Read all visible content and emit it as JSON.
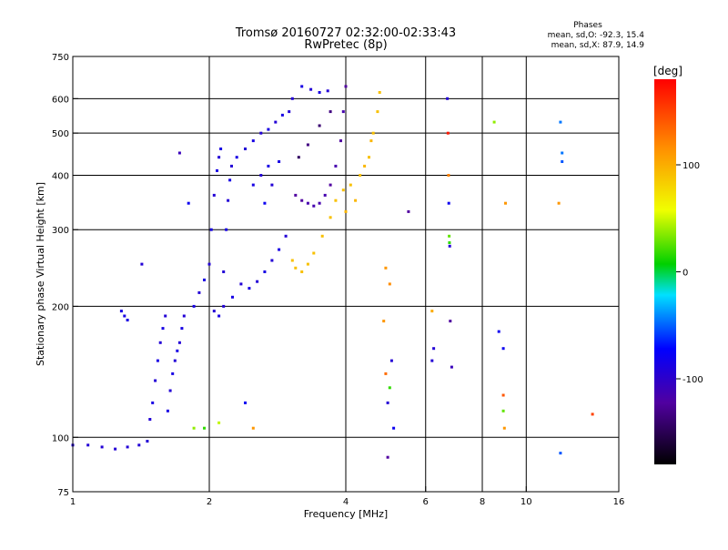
{
  "header": {
    "title": "Tromsø 20160727 02:32:00-02:33:43",
    "subtitle": "RwPretec (8p)",
    "phase_title": "Phases",
    "phase_o": "mean, sd,O: -92.3, 15.4",
    "phase_x": "mean, sd,X:  87.9, 14.9"
  },
  "chart_data": {
    "type": "scatter",
    "xlabel": "Frequency [MHz]",
    "ylabel": "Stationary phase Virtual Height [km]",
    "x_scale": "log2",
    "y_scale": "log",
    "xlim": [
      1,
      16
    ],
    "ylim": [
      75,
      750
    ],
    "x_ticks": [
      {
        "v": 1,
        "label": "1"
      },
      {
        "v": 2,
        "label": "2"
      },
      {
        "v": 4,
        "label": "4"
      },
      {
        "v": 6,
        "label": "6"
      },
      {
        "v": 8,
        "label": "8"
      },
      {
        "v": 10,
        "label": "10"
      },
      {
        "v": 16,
        "label": "16"
      }
    ],
    "x_gridlines": [
      2,
      4,
      6,
      8,
      10
    ],
    "y_ticks": [
      {
        "v": 75,
        "label": "75"
      },
      {
        "v": 100,
        "label": "100"
      },
      {
        "v": 200,
        "label": "200"
      },
      {
        "v": 300,
        "label": "300"
      },
      {
        "v": 400,
        "label": "400"
      },
      {
        "v": 500,
        "label": "500"
      },
      {
        "v": 600,
        "label": "600"
      },
      {
        "v": 750,
        "label": "750"
      }
    ],
    "y_gridlines": [
      100,
      200,
      300,
      400,
      500,
      600
    ],
    "colorbar": {
      "label": "[deg]",
      "range": [
        -180,
        180
      ],
      "ticks": [
        {
          "v": 100,
          "label": "100"
        },
        {
          "v": 0,
          "label": "0"
        },
        {
          "v": -100,
          "label": "-100"
        }
      ]
    },
    "series": [
      {
        "values": [
          [
            1.0,
            96,
            -110
          ],
          [
            1.08,
            96,
            -110
          ],
          [
            1.16,
            95,
            -110
          ],
          [
            1.24,
            94,
            -110
          ],
          [
            1.32,
            95,
            -110
          ],
          [
            1.4,
            96,
            -110
          ],
          [
            1.46,
            98,
            -110
          ],
          [
            1.28,
            195,
            -105
          ],
          [
            1.3,
            190,
            -105
          ],
          [
            1.32,
            186,
            -105
          ],
          [
            1.48,
            110,
            -110
          ],
          [
            1.5,
            120,
            -105
          ],
          [
            1.52,
            135,
            -110
          ],
          [
            1.54,
            150,
            -105
          ],
          [
            1.56,
            165,
            -110
          ],
          [
            1.58,
            178,
            -105
          ],
          [
            1.6,
            190,
            -110
          ],
          [
            1.62,
            115,
            -105
          ],
          [
            1.64,
            128,
            -110
          ],
          [
            1.66,
            140,
            -105
          ],
          [
            1.68,
            150,
            -110
          ],
          [
            1.7,
            158,
            -105
          ],
          [
            1.72,
            165,
            -110
          ],
          [
            1.74,
            178,
            -105
          ],
          [
            1.76,
            190,
            -110
          ],
          [
            1.85,
            200,
            -105
          ],
          [
            1.9,
            215,
            -110
          ],
          [
            1.95,
            230,
            -105
          ],
          [
            2.0,
            250,
            -110
          ],
          [
            2.02,
            300,
            -105
          ],
          [
            2.05,
            360,
            -110
          ],
          [
            2.08,
            410,
            -105
          ],
          [
            2.1,
            440,
            -110
          ],
          [
            2.12,
            460,
            -105
          ],
          [
            2.15,
            240,
            -110
          ],
          [
            2.18,
            300,
            -105
          ],
          [
            2.2,
            350,
            -110
          ],
          [
            2.22,
            390,
            -105
          ],
          [
            2.24,
            420,
            -110
          ],
          [
            2.05,
            195,
            -110
          ],
          [
            2.1,
            190,
            -105
          ],
          [
            2.15,
            200,
            -110
          ],
          [
            2.25,
            210,
            -105
          ],
          [
            2.35,
            225,
            -110
          ],
          [
            2.45,
            220,
            -105
          ],
          [
            2.55,
            228,
            -110
          ],
          [
            2.65,
            240,
            -105
          ],
          [
            2.75,
            255,
            -110
          ],
          [
            2.85,
            270,
            -105
          ],
          [
            2.95,
            290,
            -110
          ],
          [
            2.3,
            440,
            -105
          ],
          [
            2.4,
            460,
            -110
          ],
          [
            2.5,
            480,
            -105
          ],
          [
            2.6,
            500,
            -110
          ],
          [
            2.7,
            510,
            -105
          ],
          [
            2.8,
            530,
            -110
          ],
          [
            2.9,
            550,
            -105
          ],
          [
            3.0,
            560,
            -110
          ],
          [
            2.5,
            380,
            -105
          ],
          [
            2.6,
            400,
            -110
          ],
          [
            2.7,
            420,
            -105
          ],
          [
            2.75,
            380,
            -110
          ],
          [
            2.85,
            430,
            -105
          ],
          [
            3.05,
            600,
            -110
          ],
          [
            3.2,
            640,
            -105
          ],
          [
            3.35,
            630,
            -110
          ],
          [
            3.5,
            620,
            -105
          ],
          [
            3.65,
            625,
            -110
          ],
          [
            3.1,
            360,
            -130
          ],
          [
            3.2,
            350,
            -130
          ],
          [
            3.3,
            345,
            -125
          ],
          [
            3.4,
            340,
            -125
          ],
          [
            3.5,
            345,
            -125
          ],
          [
            3.6,
            360,
            -125
          ],
          [
            3.7,
            380,
            -130
          ],
          [
            3.8,
            420,
            -125
          ],
          [
            3.9,
            480,
            -130
          ],
          [
            3.95,
            560,
            -125
          ],
          [
            4.0,
            640,
            -130
          ],
          [
            3.15,
            440,
            -150
          ],
          [
            3.3,
            470,
            -140
          ],
          [
            3.5,
            520,
            -145
          ],
          [
            3.7,
            560,
            -140
          ],
          [
            3.05,
            255,
            90
          ],
          [
            3.1,
            245,
            90
          ],
          [
            3.2,
            240,
            90
          ],
          [
            3.3,
            250,
            90
          ],
          [
            3.4,
            265,
            90
          ],
          [
            3.55,
            290,
            90
          ],
          [
            3.7,
            320,
            90
          ],
          [
            3.8,
            350,
            90
          ],
          [
            3.95,
            370,
            90
          ],
          [
            4.1,
            380,
            90
          ],
          [
            4.3,
            400,
            90
          ],
          [
            4.5,
            440,
            90
          ],
          [
            4.6,
            500,
            90
          ],
          [
            4.7,
            560,
            90
          ],
          [
            4.75,
            620,
            90
          ],
          [
            4.0,
            330,
            95
          ],
          [
            4.2,
            350,
            95
          ],
          [
            4.4,
            420,
            95
          ],
          [
            4.55,
            480,
            95
          ],
          [
            1.42,
            250,
            -110
          ],
          [
            1.72,
            450,
            -120
          ],
          [
            1.8,
            345,
            -100
          ],
          [
            2.65,
            345,
            -100
          ],
          [
            1.85,
            105,
            40
          ],
          [
            1.95,
            105,
            20
          ],
          [
            2.1,
            108,
            50
          ],
          [
            2.4,
            120,
            -100
          ],
          [
            2.5,
            105,
            110
          ],
          [
            4.9,
            245,
            110
          ],
          [
            5.0,
            225,
            115
          ],
          [
            4.85,
            185,
            110
          ],
          [
            5.05,
            150,
            -110
          ],
          [
            4.9,
            140,
            130
          ],
          [
            5.0,
            130,
            20
          ],
          [
            4.95,
            120,
            -110
          ],
          [
            5.1,
            105,
            -100
          ],
          [
            4.95,
            90,
            -130
          ],
          [
            5.5,
            330,
            -130
          ],
          [
            6.2,
            195,
            100
          ],
          [
            6.2,
            150,
            -110
          ],
          [
            6.25,
            160,
            -110
          ],
          [
            6.7,
            600,
            -110
          ],
          [
            6.72,
            500,
            170
          ],
          [
            6.74,
            400,
            120
          ],
          [
            6.75,
            345,
            -100
          ],
          [
            6.76,
            290,
            30
          ],
          [
            6.77,
            280,
            20
          ],
          [
            6.78,
            275,
            -110
          ],
          [
            6.8,
            185,
            -130
          ],
          [
            6.85,
            145,
            -120
          ],
          [
            8.5,
            530,
            40
          ],
          [
            8.7,
            175,
            -100
          ],
          [
            8.9,
            160,
            -100
          ],
          [
            8.9,
            125,
            140
          ],
          [
            8.9,
            115,
            30
          ],
          [
            8.95,
            105,
            110
          ],
          [
            9.0,
            345,
            110
          ],
          [
            11.9,
            530,
            -60
          ],
          [
            12.0,
            450,
            -60
          ],
          [
            12.0,
            430,
            -70
          ],
          [
            11.8,
            345,
            110
          ],
          [
            11.9,
            92,
            -70
          ],
          [
            14.0,
            113,
            150
          ]
        ]
      }
    ]
  }
}
